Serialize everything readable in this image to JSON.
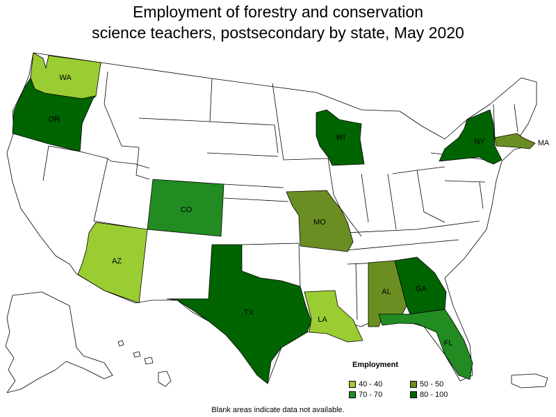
{
  "title": {
    "line1": "Employment of forestry and conservation",
    "line2": "science teachers, postsecondary by state, May 2020"
  },
  "legend": {
    "title": "Employment",
    "items": [
      {
        "label": "40 - 40",
        "color": "#9acd32"
      },
      {
        "label": "50 - 50",
        "color": "#6b8e23"
      },
      {
        "label": "70 - 70",
        "color": "#228b22"
      },
      {
        "label": "80 - 100",
        "color": "#006400"
      }
    ]
  },
  "note": "Blank areas indicate data not available.",
  "colors": {
    "no_data": "#ffffff",
    "c40": "#9acd32",
    "c50": "#6b8e23",
    "c70": "#228b22",
    "c80": "#006400"
  },
  "states": {
    "WA": {
      "label": "WA",
      "range": "40 - 40"
    },
    "OR": {
      "label": "OR",
      "range": "80 - 100"
    },
    "AZ": {
      "label": "AZ",
      "range": "40 - 40"
    },
    "CO": {
      "label": "CO",
      "range": "70 - 70"
    },
    "TX": {
      "label": "TX",
      "range": "80 - 100"
    },
    "MO": {
      "label": "MO",
      "range": "50 - 50"
    },
    "LA": {
      "label": "LA",
      "range": "40 - 40"
    },
    "WI": {
      "label": "WI",
      "range": "80 - 100"
    },
    "AL": {
      "label": "AL",
      "range": "50 - 50"
    },
    "GA": {
      "label": "GA",
      "range": "80 - 100"
    },
    "FL": {
      "label": "FL",
      "range": "70 - 70"
    },
    "NY": {
      "label": "NY",
      "range": "80 - 100"
    },
    "MA": {
      "label": "MA",
      "range": "50 - 50"
    }
  }
}
